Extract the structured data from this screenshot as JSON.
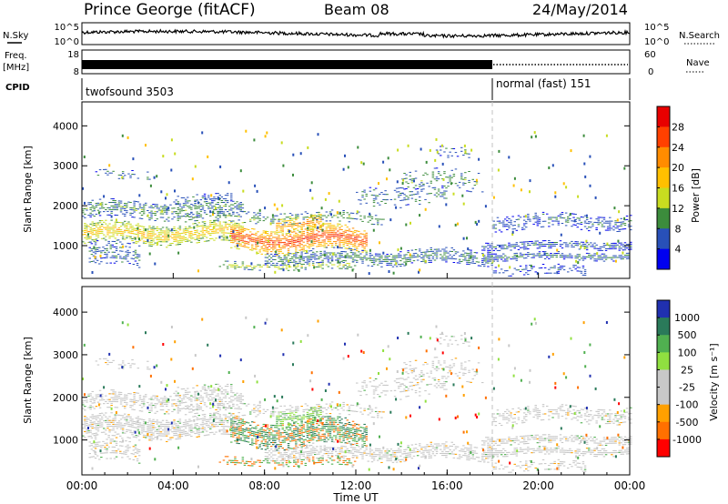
{
  "header": {
    "station": "Prince George (fitACF)",
    "beam": "Beam 08",
    "date": "24/May/2014"
  },
  "noise_panel": {
    "left_label": "N.Sky",
    "right_label": "N.Search",
    "left_ticks": [
      "10^5",
      "10^0"
    ],
    "right_ticks": [
      "10^5",
      "10^0"
    ]
  },
  "freq_panel": {
    "left_label_1": "Freq.",
    "left_label_2": "[MHz]",
    "right_label": "Nave",
    "left_ticks": [
      "18",
      "8"
    ],
    "right_ticks": [
      "60",
      "0"
    ]
  },
  "cpid_panel": {
    "label": "CPID",
    "mode_1": "twofsound 3503",
    "mode_2": "normal (fast) 151"
  },
  "chart_data": [
    {
      "type": "heatmap",
      "quantity": "Power",
      "ylabel": "Slant Range [km]",
      "yticks": [
        1000,
        2000,
        3000,
        4000
      ],
      "ylim": [
        180,
        4600
      ],
      "colorbar_label": "Power [dB]",
      "colorbar_ticks": [
        "28",
        "24",
        "20",
        "16",
        "12",
        "8",
        "4"
      ],
      "colorbar_colors": [
        "#e80000",
        "#ff4000",
        "#ff8c00",
        "#ffc000",
        "#c8dc20",
        "#3c8c3c",
        "#2850b8",
        "#0000f0"
      ],
      "range_min": 0,
      "range_max": 32
    },
    {
      "type": "heatmap",
      "quantity": "Velocity",
      "ylabel": "Slant Range [km]",
      "yticks": [
        1000,
        2000,
        3000,
        4000
      ],
      "ylim": [
        180,
        4600
      ],
      "colorbar_label": "Velocity [m s⁻¹]",
      "colorbar_ticks": [
        "1000",
        "500",
        "100",
        "25",
        "-25",
        "-100",
        "-500",
        "-1000"
      ],
      "colorbar_colors": [
        "#2030b0",
        "#2a7a5a",
        "#50b050",
        "#90e040",
        "#c8c8c8",
        "#c8c8c8",
        "#ffa000",
        "#ff7000",
        "#ff0000"
      ]
    }
  ],
  "x_axis": {
    "label": "Time UT",
    "ticks": [
      "00:00",
      "04:00",
      "08:00",
      "12:00",
      "16:00",
      "20:00",
      "00:00"
    ],
    "range_hours": [
      0,
      24
    ],
    "mode_change_hour": 18
  }
}
